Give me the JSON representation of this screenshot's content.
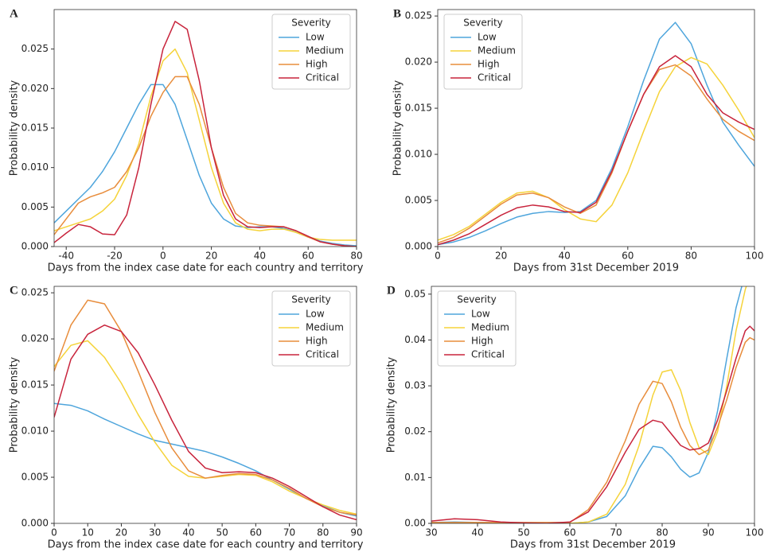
{
  "chart_data": [
    {
      "type": "line",
      "label": "A",
      "xlabel": "Days from the index case date for each country and territory",
      "ylabel": "Probability density",
      "legend_title": "Severity",
      "legend": "upper right",
      "xlim": [
        -45,
        80
      ],
      "ylim": [
        0,
        0.03
      ],
      "xticks": [
        -40,
        -20,
        0,
        20,
        40,
        60,
        80
      ],
      "yticks": [
        {
          "value": 0,
          "label": "0.000"
        },
        {
          "value": 0.005,
          "label": "0.005"
        },
        {
          "value": 0.01,
          "label": "0.010"
        },
        {
          "value": 0.015,
          "label": "0.015"
        },
        {
          "value": 0.02,
          "label": "0.020"
        },
        {
          "value": 0.025,
          "label": "0.025"
        }
      ],
      "x": [
        -45,
        -40,
        -35,
        -30,
        -25,
        -20,
        -15,
        -10,
        -5,
        0,
        5,
        10,
        15,
        20,
        25,
        30,
        35,
        40,
        45,
        50,
        55,
        60,
        65,
        70,
        75,
        80
      ],
      "series": [
        {
          "name": "Low",
          "color": "#4ea5dc",
          "values": [
            0.003,
            0.0045,
            0.006,
            0.0075,
            0.0095,
            0.012,
            0.015,
            0.018,
            0.0205,
            0.0205,
            0.018,
            0.0135,
            0.009,
            0.0055,
            0.0035,
            0.0026,
            0.0024,
            0.0025,
            0.0025,
            0.0023,
            0.0018,
            0.0012,
            0.0007,
            0.0004,
            0.0002,
            0.0001
          ]
        },
        {
          "name": "Medium",
          "color": "#f5d33a",
          "values": [
            0.002,
            0.0025,
            0.003,
            0.0035,
            0.0045,
            0.006,
            0.009,
            0.013,
            0.019,
            0.0235,
            0.025,
            0.022,
            0.016,
            0.01,
            0.0055,
            0.003,
            0.0022,
            0.002,
            0.0022,
            0.0022,
            0.0018,
            0.0012,
            0.0009,
            0.0008,
            0.0008,
            0.0008
          ]
        },
        {
          "name": "High",
          "color": "#e88d3c",
          "values": [
            0.0015,
            0.0035,
            0.0055,
            0.0063,
            0.0068,
            0.0075,
            0.0095,
            0.0125,
            0.0165,
            0.0195,
            0.0215,
            0.0215,
            0.018,
            0.0125,
            0.0075,
            0.0042,
            0.003,
            0.0027,
            0.0026,
            0.0025,
            0.002,
            0.0012,
            0.0006,
            0.0003,
            0.0001,
            0
          ]
        },
        {
          "name": "Critical",
          "color": "#c8243c",
          "values": [
            0.0005,
            0.0017,
            0.0028,
            0.0025,
            0.0016,
            0.0015,
            0.004,
            0.01,
            0.018,
            0.025,
            0.0285,
            0.0275,
            0.021,
            0.0125,
            0.0065,
            0.0035,
            0.0025,
            0.0024,
            0.0025,
            0.0025,
            0.002,
            0.0013,
            0.0006,
            0.0003,
            0.0001,
            0
          ]
        }
      ]
    },
    {
      "type": "line",
      "label": "B",
      "xlabel": "Days from 31st December 2019",
      "ylabel": "Probability density",
      "legend_title": "Severity",
      "legend": "upper left",
      "xlim": [
        0,
        100
      ],
      "ylim": [
        0,
        0.0257
      ],
      "xticks": [
        0,
        20,
        40,
        60,
        80,
        100
      ],
      "yticks": [
        {
          "value": 0,
          "label": "0.000"
        },
        {
          "value": 0.005,
          "label": "0.005"
        },
        {
          "value": 0.01,
          "label": "0.010"
        },
        {
          "value": 0.015,
          "label": "0.015"
        },
        {
          "value": 0.02,
          "label": "0.020"
        },
        {
          "value": 0.025,
          "label": "0.025"
        }
      ],
      "x": [
        0,
        5,
        10,
        15,
        20,
        25,
        30,
        35,
        40,
        45,
        50,
        55,
        60,
        65,
        70,
        75,
        80,
        85,
        90,
        95,
        100
      ],
      "series": [
        {
          "name": "Low",
          "color": "#4ea5dc",
          "values": [
            0.0002,
            0.0005,
            0.001,
            0.0017,
            0.0025,
            0.0032,
            0.0036,
            0.0038,
            0.0037,
            0.0038,
            0.005,
            0.0085,
            0.013,
            0.018,
            0.0225,
            0.0243,
            0.022,
            0.0175,
            0.0135,
            0.011,
            0.0087
          ]
        },
        {
          "name": "Medium",
          "color": "#f5d33a",
          "values": [
            0.0007,
            0.0013,
            0.0022,
            0.0035,
            0.0048,
            0.0058,
            0.006,
            0.0053,
            0.004,
            0.003,
            0.0027,
            0.0045,
            0.008,
            0.0125,
            0.0168,
            0.0195,
            0.0205,
            0.0198,
            0.0175,
            0.0148,
            0.0118
          ]
        },
        {
          "name": "High",
          "color": "#e88d3c",
          "values": [
            0.0004,
            0.001,
            0.002,
            0.0033,
            0.0046,
            0.0056,
            0.0058,
            0.0053,
            0.0043,
            0.0036,
            0.0045,
            0.008,
            0.0125,
            0.0165,
            0.0192,
            0.0197,
            0.0185,
            0.016,
            0.0138,
            0.0125,
            0.0115
          ]
        },
        {
          "name": "Critical",
          "color": "#c8243c",
          "values": [
            0.0002,
            0.0007,
            0.0014,
            0.0024,
            0.0034,
            0.0042,
            0.0045,
            0.0043,
            0.0038,
            0.0037,
            0.0048,
            0.0082,
            0.0125,
            0.0165,
            0.0195,
            0.0207,
            0.0195,
            0.0165,
            0.0145,
            0.0135,
            0.0127
          ]
        }
      ]
    },
    {
      "type": "line",
      "label": "C",
      "xlabel": "Days from the index case date for each country and territory",
      "ylabel": "Probability density",
      "legend_title": "Severity",
      "legend": "upper right",
      "xlim": [
        0,
        90
      ],
      "ylim": [
        0,
        0.0257
      ],
      "xticks": [
        0,
        10,
        20,
        30,
        40,
        50,
        60,
        70,
        80,
        90
      ],
      "yticks": [
        {
          "value": 0,
          "label": "0.000"
        },
        {
          "value": 0.005,
          "label": "0.005"
        },
        {
          "value": 0.01,
          "label": "0.010"
        },
        {
          "value": 0.015,
          "label": "0.015"
        },
        {
          "value": 0.02,
          "label": "0.020"
        },
        {
          "value": 0.025,
          "label": "0.025"
        }
      ],
      "x": [
        0,
        5,
        10,
        15,
        20,
        25,
        30,
        35,
        40,
        45,
        50,
        55,
        60,
        65,
        70,
        75,
        80,
        85,
        90
      ],
      "series": [
        {
          "name": "Low",
          "color": "#4ea5dc",
          "values": [
            0.013,
            0.0128,
            0.0122,
            0.0113,
            0.0105,
            0.0097,
            0.009,
            0.0086,
            0.0082,
            0.0078,
            0.0072,
            0.0065,
            0.0057,
            0.0047,
            0.0037,
            0.0027,
            0.0019,
            0.0012,
            0.0008
          ]
        },
        {
          "name": "Medium",
          "color": "#f5d33a",
          "values": [
            0.017,
            0.0193,
            0.0198,
            0.018,
            0.0152,
            0.0118,
            0.0088,
            0.0063,
            0.0051,
            0.0049,
            0.0051,
            0.0053,
            0.0052,
            0.0045,
            0.0035,
            0.0027,
            0.002,
            0.0014,
            0.001
          ]
        },
        {
          "name": "High",
          "color": "#e88d3c",
          "values": [
            0.0165,
            0.0215,
            0.0242,
            0.0238,
            0.0208,
            0.0165,
            0.012,
            0.0082,
            0.0057,
            0.0049,
            0.0052,
            0.0054,
            0.0053,
            0.0047,
            0.0038,
            0.0027,
            0.0018,
            0.0012,
            0.0009
          ]
        },
        {
          "name": "Critical",
          "color": "#c8243c",
          "values": [
            0.0115,
            0.0178,
            0.0205,
            0.0215,
            0.0208,
            0.0185,
            0.015,
            0.0112,
            0.0078,
            0.006,
            0.0055,
            0.0056,
            0.0055,
            0.0049,
            0.004,
            0.0029,
            0.0018,
            0.0009,
            0.0004
          ]
        }
      ]
    },
    {
      "type": "line",
      "label": "D",
      "xlabel": "Days from 31st December 2019",
      "ylabel": "Probability density",
      "legend_title": "Severity",
      "legend": "upper left",
      "xlim": [
        30,
        100
      ],
      "ylim": [
        0,
        0.0517
      ],
      "xticks": [
        30,
        40,
        50,
        60,
        70,
        80,
        90,
        100
      ],
      "yticks": [
        {
          "value": 0,
          "label": "0.00"
        },
        {
          "value": 0.01,
          "label": "0.01"
        },
        {
          "value": 0.02,
          "label": "0.02"
        },
        {
          "value": 0.03,
          "label": "0.03"
        },
        {
          "value": 0.04,
          "label": "0.04"
        },
        {
          "value": 0.05,
          "label": "0.05"
        }
      ],
      "x": [
        30,
        35,
        40,
        45,
        50,
        55,
        60,
        64,
        68,
        72,
        75,
        78,
        80,
        82,
        84,
        86,
        88,
        90,
        92,
        94,
        96,
        98,
        99,
        100
      ],
      "series": [
        {
          "name": "Low",
          "color": "#4ea5dc",
          "values": [
            0.0002,
            0.0003,
            0.0002,
            0.0001,
            0,
            0,
            0,
            0.0003,
            0.0015,
            0.006,
            0.012,
            0.0168,
            0.0165,
            0.0145,
            0.0118,
            0.0101,
            0.011,
            0.0155,
            0.0245,
            0.036,
            0.047,
            0.0545,
            0.056,
            0.055
          ]
        },
        {
          "name": "Medium",
          "color": "#f5d33a",
          "values": [
            0,
            0,
            0,
            0,
            0,
            0,
            0,
            0.0003,
            0.002,
            0.0085,
            0.017,
            0.028,
            0.033,
            0.0335,
            0.029,
            0.022,
            0.0165,
            0.015,
            0.02,
            0.03,
            0.042,
            0.051,
            0.054,
            0.054
          ]
        },
        {
          "name": "High",
          "color": "#e88d3c",
          "values": [
            0.0002,
            0.0002,
            0.0002,
            0.0002,
            0.0002,
            0.0002,
            0.0002,
            0.003,
            0.009,
            0.018,
            0.026,
            0.031,
            0.0305,
            0.0265,
            0.021,
            0.017,
            0.015,
            0.016,
            0.021,
            0.027,
            0.034,
            0.0395,
            0.0405,
            0.04
          ]
        },
        {
          "name": "Critical",
          "color": "#c8243c",
          "values": [
            0.0005,
            0.001,
            0.0008,
            0.0003,
            0.0001,
            0,
            0.0003,
            0.0025,
            0.008,
            0.0155,
            0.0205,
            0.0225,
            0.022,
            0.0195,
            0.017,
            0.016,
            0.0163,
            0.0175,
            0.0225,
            0.029,
            0.036,
            0.042,
            0.043,
            0.042
          ]
        }
      ]
    }
  ]
}
